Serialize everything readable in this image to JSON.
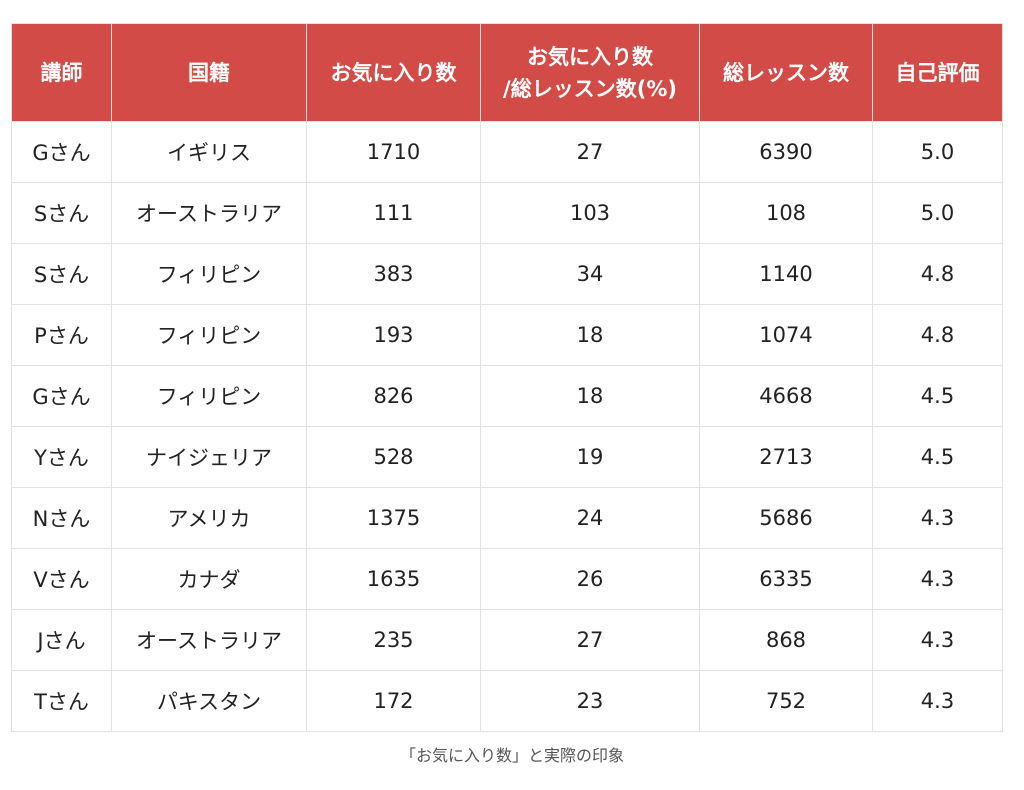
{
  "table": {
    "headers": [
      {
        "line1": "講師",
        "line2": ""
      },
      {
        "line1": "国籍",
        "line2": ""
      },
      {
        "line1": "お気に入り数",
        "line2": ""
      },
      {
        "line1": "お気に入り数",
        "line2": "/総レッスン数(%)"
      },
      {
        "line1": "総レッスン数",
        "line2": ""
      },
      {
        "line1": "自己評価",
        "line2": ""
      }
    ],
    "rows": [
      [
        "Gさん",
        "イギリス",
        "1710",
        "27",
        "6390",
        "5.0"
      ],
      [
        "Sさん",
        "オーストラリア",
        "111",
        "103",
        "108",
        "5.0"
      ],
      [
        "Sさん",
        "フィリピン",
        "383",
        "34",
        "1140",
        "4.8"
      ],
      [
        "Pさん",
        "フィリピン",
        "193",
        "18",
        "1074",
        "4.8"
      ],
      [
        "Gさん",
        "フィリピン",
        "826",
        "18",
        "4668",
        "4.5"
      ],
      [
        "Yさん",
        "ナイジェリア",
        "528",
        "19",
        "2713",
        "4.5"
      ],
      [
        "Nさん",
        "アメリカ",
        "1375",
        "24",
        "5686",
        "4.3"
      ],
      [
        "Vさん",
        "カナダ",
        "1635",
        "26",
        "6335",
        "4.3"
      ],
      [
        "Jさん",
        "オーストラリア",
        "235",
        "27",
        "868",
        "4.3"
      ],
      [
        "Tさん",
        "パキスタン",
        "172",
        "23",
        "752",
        "4.3"
      ]
    ]
  },
  "caption": "「お気に入り数」と実際の印象",
  "colors": {
    "header_bg": "#d24b47",
    "header_text": "#ffffff",
    "border": "#e2e2e2"
  }
}
